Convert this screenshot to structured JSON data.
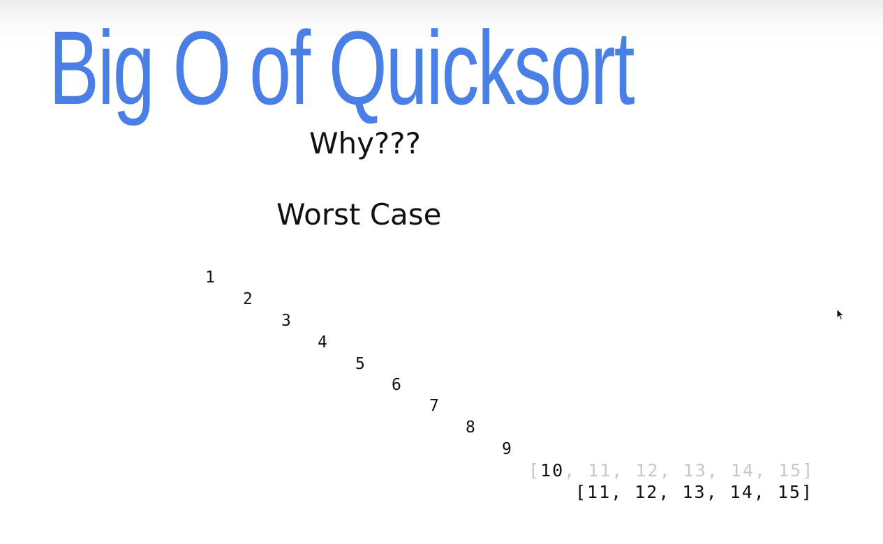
{
  "colors": {
    "title": "#4a7fe6",
    "text": "#111111",
    "faded": "#c7c7c7",
    "background": "#ffffff"
  },
  "slide": {
    "title": "Big O of Quicksort",
    "subtitle": "Why???",
    "heading": "Worst Case",
    "pivots": [
      "1",
      "2",
      "3",
      "4",
      "5",
      "6",
      "7",
      "8",
      "9"
    ],
    "faded_row": {
      "open": "[",
      "pivot": "10",
      "rest": ", 11, 12, 13, 14, 15]"
    },
    "last_row": "[11, 12, 13, 14, 15]"
  },
  "cursor": {
    "icon": "mouse-pointer-icon"
  }
}
